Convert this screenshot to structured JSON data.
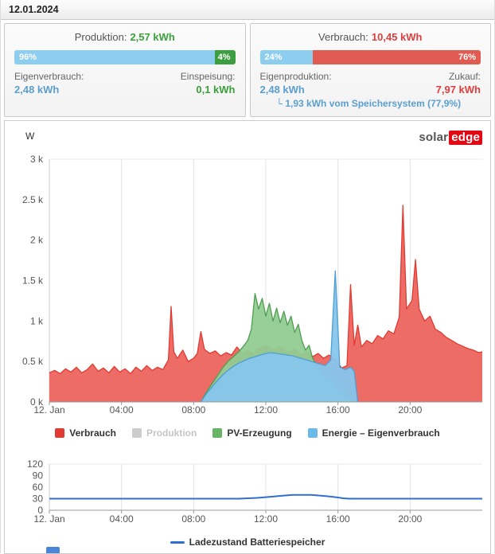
{
  "header": {
    "date": "12.01.2024"
  },
  "production_card": {
    "title_label": "Produktion:",
    "title_value": "2,57 kWh",
    "bar": {
      "left_pct": 96,
      "right_pct": 4,
      "left_label": "96%",
      "right_label": "4%"
    },
    "left_stat": {
      "label": "Eigenverbrauch:",
      "value": "2,48 kWh"
    },
    "right_stat": {
      "label": "Einspeisung:",
      "value": "0,1 kWh"
    }
  },
  "consumption_card": {
    "title_label": "Verbrauch:",
    "title_value": "10,45 kWh",
    "bar": {
      "left_pct": 24,
      "right_pct": 76,
      "left_label": "24%",
      "right_label": "76%"
    },
    "left_stat": {
      "label": "Eigenproduktion:",
      "value": "2,48 kWh"
    },
    "right_stat": {
      "label": "Zukauf:",
      "value": "7,97 kWh"
    },
    "battery_note": "└ 1,93 kWh vom Speichersystem (77,9%)"
  },
  "logo": {
    "part1": "solar",
    "part2": "edge"
  },
  "colors": {
    "bar_blue": "#8ccdf0",
    "bar_green": "#3c9e41",
    "bar_red": "#e25b52",
    "text_blue": "#5b9fd0",
    "text_green": "#3aa03a",
    "text_red": "#e03e3e",
    "brand_red": "#e30613",
    "battery_line": "#2f6fd0"
  },
  "chart_data": [
    {
      "type": "area",
      "ylabel": "W",
      "xlim": [
        0,
        24
      ],
      "ylim": [
        0,
        3000
      ],
      "grid": "vertical",
      "legend_position": "bottom",
      "yticks": [
        {
          "v": 0,
          "label": "0 k"
        },
        {
          "v": 500,
          "label": "0.5 k"
        },
        {
          "v": 1000,
          "label": "1 k"
        },
        {
          "v": 1500,
          "label": "1.5 k"
        },
        {
          "v": 2000,
          "label": "2 k"
        },
        {
          "v": 2500,
          "label": "2.5 k"
        },
        {
          "v": 3000,
          "label": "3 k"
        }
      ],
      "xticks": [
        {
          "v": 0,
          "label": "12. Jan"
        },
        {
          "v": 4,
          "label": "04:00"
        },
        {
          "v": 8,
          "label": "08:00"
        },
        {
          "v": 12,
          "label": "12:00"
        },
        {
          "v": 16,
          "label": "16:00"
        },
        {
          "v": 20,
          "label": "20:00"
        }
      ],
      "series": [
        {
          "name": "Verbrauch",
          "area": true,
          "color": "#e03a32",
          "fill": "#ec655e",
          "legendColor": "#e23a35",
          "points": [
            [
              0,
              360
            ],
            [
              0.3,
              390
            ],
            [
              0.6,
              350
            ],
            [
              0.9,
              410
            ],
            [
              1.2,
              370
            ],
            [
              1.5,
              430
            ],
            [
              1.8,
              360
            ],
            [
              2.1,
              400
            ],
            [
              2.4,
              470
            ],
            [
              2.7,
              380
            ],
            [
              3,
              420
            ],
            [
              3.3,
              360
            ],
            [
              3.6,
              440
            ],
            [
              3.9,
              370
            ],
            [
              4.2,
              410
            ],
            [
              4.5,
              350
            ],
            [
              4.8,
              430
            ],
            [
              5.1,
              380
            ],
            [
              5.4,
              450
            ],
            [
              5.7,
              390
            ],
            [
              6,
              430
            ],
            [
              6.3,
              400
            ],
            [
              6.6,
              520
            ],
            [
              6.75,
              1180
            ],
            [
              6.9,
              620
            ],
            [
              7.1,
              540
            ],
            [
              7.4,
              640
            ],
            [
              7.7,
              500
            ],
            [
              8,
              540
            ],
            [
              8.2,
              600
            ],
            [
              8.4,
              870
            ],
            [
              8.6,
              650
            ],
            [
              8.9,
              600
            ],
            [
              9.2,
              630
            ],
            [
              9.5,
              570
            ],
            [
              9.8,
              610
            ],
            [
              10.1,
              580
            ],
            [
              10.4,
              680
            ],
            [
              10.7,
              600
            ],
            [
              11,
              640
            ],
            [
              11.3,
              600
            ],
            [
              11.6,
              660
            ],
            [
              12,
              700
            ],
            [
              12.4,
              640
            ],
            [
              12.8,
              680
            ],
            [
              13.2,
              620
            ],
            [
              13.6,
              650
            ],
            [
              14,
              580
            ],
            [
              14.3,
              620
            ],
            [
              14.6,
              560
            ],
            [
              14.9,
              600
            ],
            [
              15.2,
              540
            ],
            [
              15.5,
              580
            ],
            [
              15.9,
              520
            ],
            [
              16.2,
              420
            ],
            [
              16.5,
              450
            ],
            [
              16.7,
              1450
            ],
            [
              16.9,
              700
            ],
            [
              17.1,
              950
            ],
            [
              17.3,
              680
            ],
            [
              17.6,
              760
            ],
            [
              17.9,
              720
            ],
            [
              18.2,
              820
            ],
            [
              18.5,
              780
            ],
            [
              18.8,
              880
            ],
            [
              19.1,
              840
            ],
            [
              19.4,
              1050
            ],
            [
              19.6,
              2430
            ],
            [
              19.8,
              1150
            ],
            [
              20.1,
              1250
            ],
            [
              20.3,
              1760
            ],
            [
              20.5,
              1150
            ],
            [
              20.8,
              1000
            ],
            [
              21.1,
              1060
            ],
            [
              21.4,
              900
            ],
            [
              21.7,
              860
            ],
            [
              22,
              800
            ],
            [
              22.3,
              760
            ],
            [
              22.6,
              720
            ],
            [
              22.9,
              690
            ],
            [
              23.2,
              660
            ],
            [
              23.5,
              640
            ],
            [
              23.8,
              610
            ],
            [
              24,
              620
            ]
          ]
        },
        {
          "name": "Produktion",
          "area": true,
          "disabled": true,
          "color": "#c0c0c0",
          "fill": "#d8d8d8",
          "legendColor": "#cccccc",
          "points": []
        },
        {
          "name": "PV-Erzeugung",
          "area": true,
          "color": "#4e9e50",
          "fill": "#92cc92",
          "legendColor": "#66b465",
          "points": [
            [
              8.4,
              0
            ],
            [
              8.7,
              120
            ],
            [
              9,
              220
            ],
            [
              9.3,
              320
            ],
            [
              9.6,
              420
            ],
            [
              9.9,
              500
            ],
            [
              10.2,
              560
            ],
            [
              10.5,
              620
            ],
            [
              10.8,
              700
            ],
            [
              11,
              760
            ],
            [
              11.2,
              900
            ],
            [
              11.4,
              1340
            ],
            [
              11.6,
              1150
            ],
            [
              11.8,
              1280
            ],
            [
              12,
              1060
            ],
            [
              12.2,
              1220
            ],
            [
              12.4,
              1000
            ],
            [
              12.6,
              1160
            ],
            [
              12.8,
              980
            ],
            [
              13,
              1120
            ],
            [
              13.2,
              950
            ],
            [
              13.4,
              1060
            ],
            [
              13.6,
              860
            ],
            [
              13.8,
              960
            ],
            [
              14,
              760
            ],
            [
              14.2,
              640
            ],
            [
              14.4,
              700
            ],
            [
              14.6,
              540
            ],
            [
              14.8,
              460
            ],
            [
              15,
              400
            ],
            [
              15.3,
              320
            ],
            [
              15.6,
              260
            ],
            [
              15.9,
              200
            ],
            [
              16.2,
              140
            ],
            [
              16.5,
              80
            ],
            [
              16.8,
              30
            ],
            [
              17,
              0
            ]
          ]
        },
        {
          "name": "Energie – Eigenverbrauch",
          "area": true,
          "color": "#4d9fd4",
          "fill": "#86c6ec",
          "legendColor": "#6cb9e9",
          "points": [
            [
              8.4,
              0
            ],
            [
              8.7,
              100
            ],
            [
              9,
              180
            ],
            [
              9.3,
              260
            ],
            [
              9.6,
              330
            ],
            [
              9.9,
              390
            ],
            [
              10.2,
              440
            ],
            [
              10.5,
              480
            ],
            [
              10.8,
              510
            ],
            [
              11.1,
              540
            ],
            [
              11.4,
              560
            ],
            [
              11.7,
              580
            ],
            [
              12,
              600
            ],
            [
              12.3,
              610
            ],
            [
              12.6,
              600
            ],
            [
              12.9,
              590
            ],
            [
              13.2,
              580
            ],
            [
              13.5,
              570
            ],
            [
              13.8,
              550
            ],
            [
              14.1,
              530
            ],
            [
              14.4,
              510
            ],
            [
              14.7,
              490
            ],
            [
              15,
              470
            ],
            [
              15.3,
              450
            ],
            [
              15.6,
              520
            ],
            [
              15.85,
              1620
            ],
            [
              16,
              900
            ],
            [
              16.1,
              430
            ],
            [
              16.4,
              400
            ],
            [
              16.7,
              430
            ],
            [
              16.9,
              380
            ],
            [
              17.1,
              0
            ]
          ]
        }
      ]
    },
    {
      "type": "line",
      "ylabel": "",
      "xlim": [
        0,
        24
      ],
      "ylim": [
        0,
        120
      ],
      "grid": "vertical",
      "legend_position": "bottom",
      "yticks": [
        {
          "v": 0,
          "label": "0"
        },
        {
          "v": 30,
          "label": "30"
        },
        {
          "v": 60,
          "label": "60"
        },
        {
          "v": 90,
          "label": "90"
        },
        {
          "v": 120,
          "label": "120"
        }
      ],
      "xticks": [
        {
          "v": 0,
          "label": "12. Jan"
        },
        {
          "v": 4,
          "label": "04:00"
        },
        {
          "v": 8,
          "label": "08:00"
        },
        {
          "v": 12,
          "label": "12:00"
        },
        {
          "v": 16,
          "label": "16:00"
        },
        {
          "v": 20,
          "label": "20:00"
        }
      ],
      "series": [
        {
          "name": "Ladezustand Batteriespeicher",
          "color": "#2f6fd0",
          "legendColor": "#2f6fd0",
          "points": [
            [
              0,
              30
            ],
            [
              1,
              30
            ],
            [
              2,
              30
            ],
            [
              3,
              30
            ],
            [
              4,
              30
            ],
            [
              5,
              30
            ],
            [
              6,
              30
            ],
            [
              7,
              30
            ],
            [
              8,
              30
            ],
            [
              9,
              30
            ],
            [
              10,
              30
            ],
            [
              10.5,
              30
            ],
            [
              11,
              31
            ],
            [
              11.5,
              32
            ],
            [
              12,
              34
            ],
            [
              12.5,
              36
            ],
            [
              13,
              38
            ],
            [
              13.5,
              40
            ],
            [
              14,
              40
            ],
            [
              14.5,
              40
            ],
            [
              15,
              38
            ],
            [
              15.5,
              36
            ],
            [
              16,
              33
            ],
            [
              16.3,
              31
            ],
            [
              16.6,
              30
            ],
            [
              17,
              30
            ],
            [
              18,
              30
            ],
            [
              19,
              30
            ],
            [
              20,
              30
            ],
            [
              21,
              30
            ],
            [
              22,
              30
            ],
            [
              23,
              30
            ],
            [
              24,
              30
            ]
          ]
        }
      ]
    }
  ]
}
